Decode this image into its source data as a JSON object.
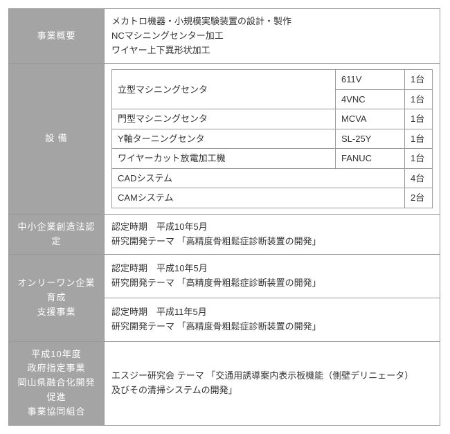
{
  "rows": {
    "overview": {
      "label": "事業概要",
      "lines": [
        "メカトロ機器・小規模実験装置の設計・製作",
        "NCマシニングセンター加工",
        "ワイヤー上下異形状加工"
      ]
    },
    "equipment": {
      "label": "設 備",
      "items": [
        {
          "name": "立型マシニングセンタ",
          "model": "611V",
          "qty": "1台",
          "rowspan": 2
        },
        {
          "model": "4VNC",
          "qty": "1台"
        },
        {
          "name": "門型マシニングセンタ",
          "model": "MCVA",
          "qty": "1台"
        },
        {
          "name": "Y軸ターニングセンタ",
          "model": "SL-25Y",
          "qty": "1台"
        },
        {
          "name": "ワイヤーカット放電加工機",
          "model": "FANUC",
          "qty": "1台"
        },
        {
          "name": "CADシステム",
          "model": "",
          "qty": "4台",
          "colspan": 2
        },
        {
          "name": "CAMシステム",
          "model": "",
          "qty": "2台",
          "colspan": 2
        }
      ]
    },
    "cert": {
      "label": "中小企業創造法認定",
      "lines": [
        "認定時期　平成10年5月",
        "研究開発テーマ 「高精度骨粗鬆症診断装置の開発」"
      ]
    },
    "onlyone": {
      "label": "オンリーワン企業育成\n支援事業",
      "block1": [
        "認定時期　平成10年5月",
        "研究開発テーマ 「高精度骨粗鬆症診断装置の開発」"
      ],
      "block2": [
        "認定時期　平成11年5月",
        "研究開発テーマ 「高精度骨粗鬆症診断装置の開発」"
      ]
    },
    "h10": {
      "label": "平成10年度\n政府指定事業\n岡山県融合化開発促進\n事業協同組合",
      "lines": [
        "エスジー研究会  テーマ 「交通用誘導案内表示板機能（側壁デリニェータ）",
        "及びその清掃システムの開発」"
      ]
    }
  }
}
